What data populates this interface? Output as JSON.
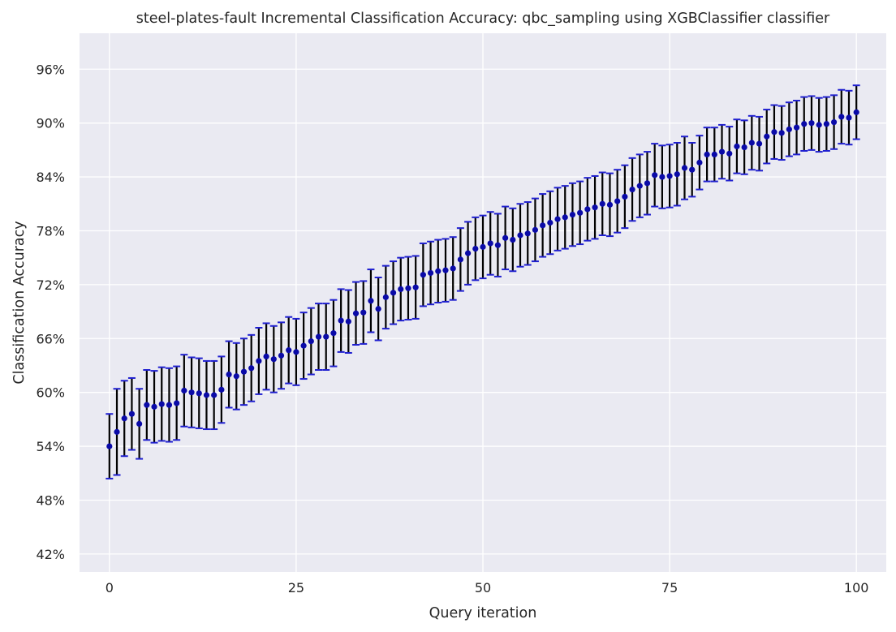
{
  "chart_data": {
    "type": "scatter",
    "title": "steel-plates-fault Incremental Classification Accuracy: qbc_sampling using XGBClassifier classifier",
    "xlabel": "Query iteration",
    "ylabel": "Classification Accuracy",
    "xlim": [
      -4,
      104
    ],
    "ylim": [
      0.4,
      1.0
    ],
    "xticks": [
      0,
      25,
      50,
      75,
      100
    ],
    "yticks": [
      0.42,
      0.48,
      0.54,
      0.6,
      0.66,
      0.72,
      0.78,
      0.84,
      0.9,
      0.96
    ],
    "ytick_format": "percent",
    "grid": true,
    "background": "#eaeaf2",
    "grid_color": "#ffffff",
    "marker_color": "#0a0aa8",
    "errorbar_color": "#000000",
    "cap_color": "#1f1fd0",
    "series": [
      {
        "x": [
          0,
          1,
          2,
          3,
          4,
          5,
          6,
          7,
          8,
          9,
          10,
          11,
          12,
          13,
          14,
          15,
          16,
          17,
          18,
          19,
          20,
          21,
          22,
          23,
          24,
          25,
          26,
          27,
          28,
          29,
          30,
          31,
          32,
          33,
          34,
          35,
          36,
          37,
          38,
          39,
          40,
          41,
          42,
          43,
          44,
          45,
          46,
          47,
          48,
          49,
          50,
          51,
          52,
          53,
          54,
          55,
          56,
          57,
          58,
          59,
          60,
          61,
          62,
          63,
          64,
          65,
          66,
          67,
          68,
          69,
          70,
          71,
          72,
          73,
          74,
          75,
          76,
          77,
          78,
          79,
          80,
          81,
          82,
          83,
          84,
          85,
          86,
          87,
          88,
          89,
          90,
          91,
          92,
          93,
          94,
          95,
          96,
          97,
          98,
          99,
          100
        ],
        "y": [
          0.54,
          0.556,
          0.571,
          0.576,
          0.565,
          0.586,
          0.584,
          0.587,
          0.586,
          0.588,
          0.602,
          0.6,
          0.599,
          0.597,
          0.597,
          0.603,
          0.62,
          0.618,
          0.623,
          0.627,
          0.635,
          0.64,
          0.637,
          0.641,
          0.647,
          0.645,
          0.652,
          0.657,
          0.662,
          0.662,
          0.666,
          0.68,
          0.679,
          0.688,
          0.689,
          0.702,
          0.693,
          0.706,
          0.711,
          0.715,
          0.716,
          0.717,
          0.731,
          0.733,
          0.735,
          0.736,
          0.738,
          0.748,
          0.755,
          0.76,
          0.762,
          0.766,
          0.764,
          0.772,
          0.77,
          0.775,
          0.777,
          0.781,
          0.786,
          0.789,
          0.793,
          0.795,
          0.798,
          0.8,
          0.804,
          0.806,
          0.81,
          0.809,
          0.813,
          0.818,
          0.826,
          0.83,
          0.833,
          0.842,
          0.84,
          0.841,
          0.843,
          0.85,
          0.848,
          0.856,
          0.865,
          0.865,
          0.868,
          0.866,
          0.874,
          0.873,
          0.878,
          0.877,
          0.885,
          0.89,
          0.889,
          0.893,
          0.895,
          0.899,
          0.9,
          0.898,
          0.899,
          0.901,
          0.907,
          0.906,
          0.912
        ],
        "err": [
          0.036,
          0.048,
          0.042,
          0.04,
          0.039,
          0.039,
          0.04,
          0.041,
          0.041,
          0.041,
          0.04,
          0.039,
          0.039,
          0.038,
          0.038,
          0.037,
          0.037,
          0.037,
          0.037,
          0.037,
          0.037,
          0.037,
          0.037,
          0.037,
          0.037,
          0.037,
          0.037,
          0.037,
          0.037,
          0.037,
          0.037,
          0.035,
          0.035,
          0.035,
          0.035,
          0.035,
          0.035,
          0.035,
          0.035,
          0.035,
          0.035,
          0.035,
          0.035,
          0.035,
          0.035,
          0.035,
          0.035,
          0.035,
          0.035,
          0.035,
          0.035,
          0.035,
          0.035,
          0.035,
          0.035,
          0.035,
          0.035,
          0.035,
          0.035,
          0.035,
          0.035,
          0.035,
          0.035,
          0.035,
          0.035,
          0.035,
          0.035,
          0.035,
          0.035,
          0.035,
          0.035,
          0.035,
          0.035,
          0.035,
          0.035,
          0.035,
          0.035,
          0.035,
          0.03,
          0.03,
          0.03,
          0.03,
          0.03,
          0.03,
          0.03,
          0.03,
          0.03,
          0.03,
          0.03,
          0.03,
          0.03,
          0.03,
          0.03,
          0.03,
          0.03,
          0.03,
          0.03,
          0.03,
          0.03,
          0.03,
          0.03
        ]
      }
    ]
  }
}
